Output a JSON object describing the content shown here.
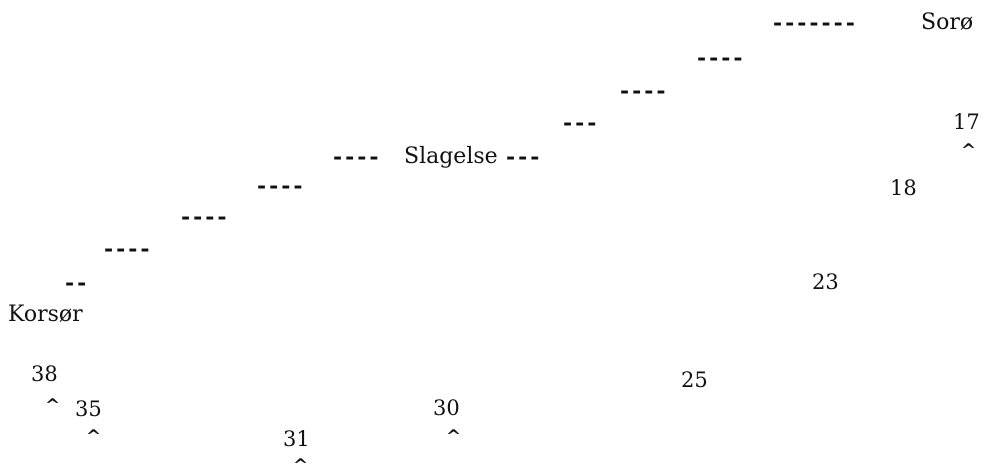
{
  "places": {
    "korsor": "Korsør",
    "slagelse": "Slagelse",
    "soro": "Sorø"
  },
  "route_dashes": {
    "d1": "--",
    "d2": "----",
    "d3": "----",
    "d4": "----",
    "d5": "----",
    "d6": "---",
    "d7": "---",
    "d8": "----",
    "d9": "----",
    "d10": "-------"
  },
  "numbers": {
    "n38": "38",
    "n35": "35",
    "n31": "31",
    "n30": "30",
    "n25": "25",
    "n23": "23",
    "n18": "18",
    "n17": "17"
  },
  "caret_mark": "^"
}
